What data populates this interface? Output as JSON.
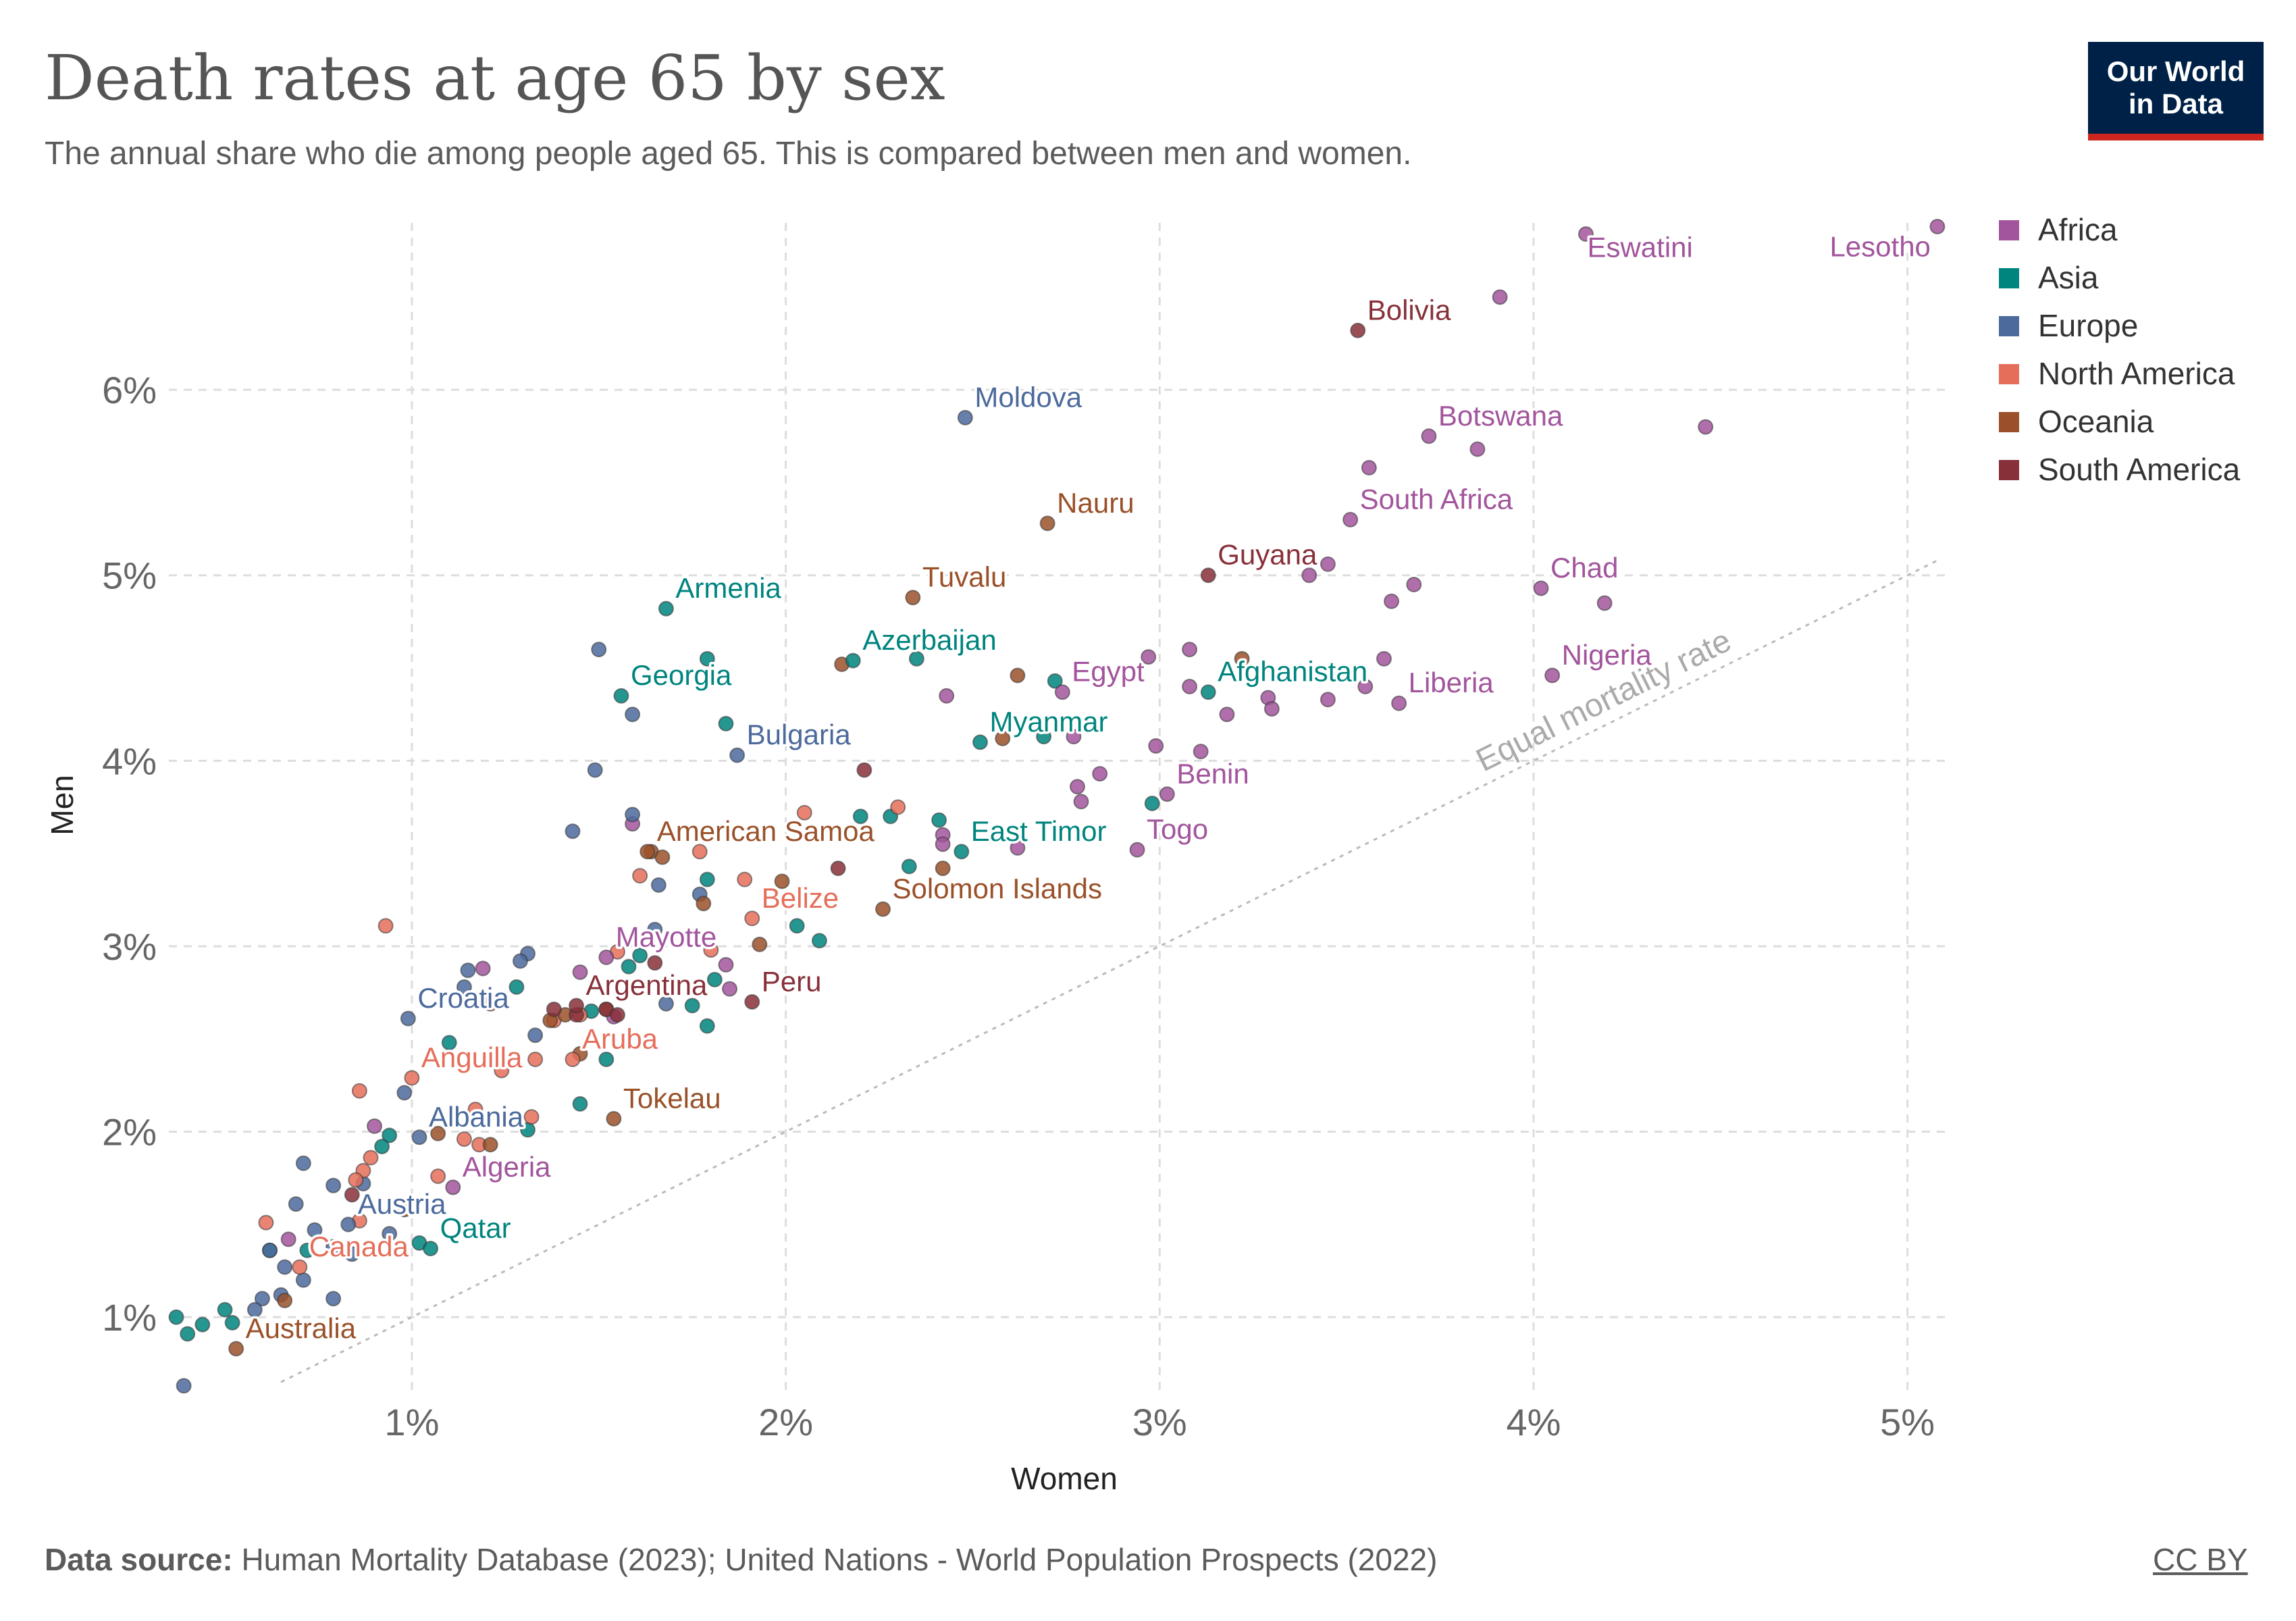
{
  "title": "Death rates at age 65 by sex",
  "subtitle": "The annual share who die among people aged 65. This is compared between men and women.",
  "logo": {
    "line1": "Our World",
    "line2": "in Data"
  },
  "footer": {
    "source_label": "Data source:",
    "source_text": "Human Mortality Database (2023); United Nations - World Population Prospects (2022)",
    "license": "CC BY"
  },
  "colors": {
    "Africa": "#a2559c",
    "Asia": "#00847e",
    "Europe": "#4c6a9c",
    "North America": "#e56e5a",
    "Oceania": "#9a5129",
    "South America": "#883039"
  },
  "chart_data": {
    "type": "scatter",
    "xlabel": "Women",
    "ylabel": "Men",
    "xlim": [
      0.35,
      5.1
    ],
    "ylim": [
      0.6,
      6.9
    ],
    "xticks": [
      1,
      2,
      3,
      4,
      5
    ],
    "yticks": [
      1,
      2,
      3,
      4,
      5,
      6
    ],
    "tick_suffix": "%",
    "grid": true,
    "legend_position": "top-right",
    "legend": [
      "Africa",
      "Asia",
      "Europe",
      "North America",
      "Oceania",
      "South America"
    ],
    "reference_line": {
      "label": "Equal mortality rate",
      "from": [
        0.65,
        0.65
      ],
      "to": [
        5.08,
        5.08
      ]
    },
    "labeled_points": [
      {
        "name": "Lesotho",
        "region": "Africa",
        "x": 5.08,
        "y": 6.88
      },
      {
        "name": "Eswatini",
        "region": "Africa",
        "x": 4.14,
        "y": 6.84
      },
      {
        "name": "Bolivia",
        "region": "South America",
        "x": 3.53,
        "y": 6.32
      },
      {
        "name": "Moldova",
        "region": "Europe",
        "x": 2.48,
        "y": 5.85
      },
      {
        "name": "Botswana",
        "region": "Africa",
        "x": 3.72,
        "y": 5.75
      },
      {
        "name": "South Africa",
        "region": "Africa",
        "x": 3.51,
        "y": 5.3
      },
      {
        "name": "Nauru",
        "region": "Oceania",
        "x": 2.7,
        "y": 5.28
      },
      {
        "name": "Guyana",
        "region": "South America",
        "x": 3.13,
        "y": 5.0
      },
      {
        "name": "Chad",
        "region": "Africa",
        "x": 4.02,
        "y": 4.93
      },
      {
        "name": "Tuvalu",
        "region": "Oceania",
        "x": 2.34,
        "y": 4.88
      },
      {
        "name": "Armenia",
        "region": "Asia",
        "x": 1.68,
        "y": 4.82
      },
      {
        "name": "Azerbaijan",
        "region": "Asia",
        "x": 2.18,
        "y": 4.54
      },
      {
        "name": "Nigeria",
        "region": "Africa",
        "x": 4.05,
        "y": 4.46
      },
      {
        "name": "Egypt",
        "region": "Africa",
        "x": 2.74,
        "y": 4.37
      },
      {
        "name": "Afghanistan",
        "region": "Asia",
        "x": 3.13,
        "y": 4.37
      },
      {
        "name": "Georgia",
        "region": "Asia",
        "x": 1.56,
        "y": 4.35
      },
      {
        "name": "Liberia",
        "region": "Africa",
        "x": 3.64,
        "y": 4.31
      },
      {
        "name": "Myanmar",
        "region": "Asia",
        "x": 2.52,
        "y": 4.1
      },
      {
        "name": "Bulgaria",
        "region": "Europe",
        "x": 1.87,
        "y": 4.03
      },
      {
        "name": "Benin",
        "region": "Africa",
        "x": 3.02,
        "y": 3.82
      },
      {
        "name": "American Samoa",
        "region": "Oceania",
        "x": 1.63,
        "y": 3.51
      },
      {
        "name": "East Timor",
        "region": "Asia",
        "x": 2.47,
        "y": 3.51
      },
      {
        "name": "Togo",
        "region": "Africa",
        "x": 2.94,
        "y": 3.52
      },
      {
        "name": "Solomon Islands",
        "region": "Oceania",
        "x": 2.26,
        "y": 3.2
      },
      {
        "name": "Belize",
        "region": "North America",
        "x": 1.91,
        "y": 3.15
      },
      {
        "name": "Mayotte",
        "region": "Africa",
        "x": 1.52,
        "y": 2.94
      },
      {
        "name": "Peru",
        "region": "South America",
        "x": 1.91,
        "y": 2.7
      },
      {
        "name": "Argentina",
        "region": "South America",
        "x": 1.44,
        "y": 2.68
      },
      {
        "name": "Croatia",
        "region": "Europe",
        "x": 0.99,
        "y": 2.61
      },
      {
        "name": "Aruba",
        "region": "North America",
        "x": 1.43,
        "y": 2.39
      },
      {
        "name": "Anguilla",
        "region": "North America",
        "x": 1.0,
        "y": 2.29
      },
      {
        "name": "Tokelau",
        "region": "Oceania",
        "x": 1.54,
        "y": 2.07
      },
      {
        "name": "Albania",
        "region": "Europe",
        "x": 1.02,
        "y": 1.97
      },
      {
        "name": "Algeria",
        "region": "Africa",
        "x": 1.11,
        "y": 1.7
      },
      {
        "name": "Austria",
        "region": "Europe",
        "x": 0.83,
        "y": 1.5
      },
      {
        "name": "Qatar",
        "region": "Asia",
        "x": 1.05,
        "y": 1.37
      },
      {
        "name": "Canada",
        "region": "North America",
        "x": 0.7,
        "y": 1.27
      },
      {
        "name": "Australia",
        "region": "Oceania",
        "x": 0.53,
        "y": 0.83
      }
    ],
    "points": [
      [
        "Africa",
        4.46,
        5.8
      ],
      [
        "Africa",
        3.91,
        6.5
      ],
      [
        "Africa",
        3.85,
        5.68
      ],
      [
        "Africa",
        3.56,
        5.58
      ],
      [
        "Africa",
        3.45,
        5.06
      ],
      [
        "Africa",
        3.4,
        5.0
      ],
      [
        "Africa",
        3.62,
        4.86
      ],
      [
        "Africa",
        3.68,
        4.95
      ],
      [
        "Africa",
        4.19,
        4.85
      ],
      [
        "Africa",
        3.6,
        4.55
      ],
      [
        "Africa",
        3.55,
        4.4
      ],
      [
        "Africa",
        3.45,
        4.33
      ],
      [
        "Africa",
        3.29,
        4.34
      ],
      [
        "Africa",
        3.3,
        4.28
      ],
      [
        "Africa",
        3.18,
        4.25
      ],
      [
        "Africa",
        3.08,
        4.6
      ],
      [
        "Africa",
        2.97,
        4.56
      ],
      [
        "Africa",
        3.08,
        4.4
      ],
      [
        "Africa",
        2.99,
        4.08
      ],
      [
        "Africa",
        3.11,
        4.05
      ],
      [
        "Africa",
        3.19,
        3.92
      ],
      [
        "Africa",
        2.77,
        4.13
      ],
      [
        "Africa",
        2.84,
        3.93
      ],
      [
        "Africa",
        2.78,
        3.86
      ],
      [
        "Africa",
        2.79,
        3.78
      ],
      [
        "Africa",
        2.62,
        3.53
      ],
      [
        "Africa",
        2.43,
        4.35
      ],
      [
        "Africa",
        2.42,
        3.6
      ],
      [
        "Africa",
        2.42,
        3.55
      ],
      [
        "Africa",
        1.59,
        3.66
      ],
      [
        "Africa",
        1.84,
        2.9
      ],
      [
        "Africa",
        1.85,
        2.77
      ],
      [
        "Africa",
        1.45,
        2.86
      ],
      [
        "Africa",
        1.19,
        2.88
      ],
      [
        "Africa",
        0.9,
        2.03
      ],
      [
        "Africa",
        0.67,
        1.42
      ],
      [
        "Africa",
        1.54,
        2.62
      ],
      [
        "Asia",
        1.79,
        4.55
      ],
      [
        "Asia",
        2.35,
        4.55
      ],
      [
        "Asia",
        1.84,
        4.2
      ],
      [
        "Asia",
        2.72,
        4.43
      ],
      [
        "Asia",
        2.69,
        4.13
      ],
      [
        "Asia",
        2.98,
        3.77
      ],
      [
        "Asia",
        2.2,
        3.7
      ],
      [
        "Asia",
        2.28,
        3.7
      ],
      [
        "Asia",
        2.41,
        3.68
      ],
      [
        "Asia",
        2.33,
        3.43
      ],
      [
        "Asia",
        2.03,
        3.11
      ],
      [
        "Asia",
        2.09,
        3.03
      ],
      [
        "Asia",
        1.79,
        3.36
      ],
      [
        "Asia",
        1.61,
        2.95
      ],
      [
        "Asia",
        1.58,
        2.89
      ],
      [
        "Asia",
        1.75,
        2.68
      ],
      [
        "Asia",
        1.81,
        2.82
      ],
      [
        "Asia",
        1.79,
        2.57
      ],
      [
        "Asia",
        1.28,
        2.78
      ],
      [
        "Asia",
        1.1,
        2.48
      ],
      [
        "Asia",
        1.52,
        2.39
      ],
      [
        "Asia",
        1.48,
        2.65
      ],
      [
        "Asia",
        1.45,
        2.15
      ],
      [
        "Asia",
        1.31,
        2.01
      ],
      [
        "Asia",
        0.94,
        1.98
      ],
      [
        "Asia",
        0.92,
        1.92
      ],
      [
        "Asia",
        1.02,
        1.4
      ],
      [
        "Asia",
        0.62,
        1.36
      ],
      [
        "Asia",
        0.72,
        1.36
      ],
      [
        "Asia",
        0.5,
        1.04
      ],
      [
        "Asia",
        0.4,
        0.91
      ],
      [
        "Asia",
        0.44,
        0.96
      ],
      [
        "Asia",
        0.37,
        1.0
      ],
      [
        "Asia",
        0.52,
        0.97
      ],
      [
        "Europe",
        1.5,
        4.6
      ],
      [
        "Europe",
        1.59,
        4.25
      ],
      [
        "Europe",
        1.49,
        3.95
      ],
      [
        "Europe",
        1.59,
        3.71
      ],
      [
        "Europe",
        1.43,
        3.62
      ],
      [
        "Europe",
        1.66,
        3.33
      ],
      [
        "Europe",
        1.77,
        3.28
      ],
      [
        "Europe",
        1.65,
        3.09
      ],
      [
        "Europe",
        1.31,
        2.96
      ],
      [
        "Europe",
        1.29,
        2.92
      ],
      [
        "Europe",
        1.15,
        2.87
      ],
      [
        "Europe",
        1.14,
        2.78
      ],
      [
        "Europe",
        1.33,
        2.52
      ],
      [
        "Europe",
        1.68,
        2.69
      ],
      [
        "Europe",
        0.98,
        2.21
      ],
      [
        "Europe",
        0.94,
        1.45
      ],
      [
        "Europe",
        0.87,
        1.72
      ],
      [
        "Europe",
        0.79,
        1.71
      ],
      [
        "Europe",
        0.71,
        1.83
      ],
      [
        "Europe",
        0.69,
        1.61
      ],
      [
        "Europe",
        0.74,
        1.47
      ],
      [
        "Europe",
        0.79,
        1.38
      ],
      [
        "Europe",
        0.82,
        1.36
      ],
      [
        "Europe",
        0.84,
        1.34
      ],
      [
        "Europe",
        0.62,
        1.36
      ],
      [
        "Europe",
        0.66,
        1.27
      ],
      [
        "Europe",
        0.71,
        1.2
      ],
      [
        "Europe",
        0.65,
        1.12
      ],
      [
        "Europe",
        0.6,
        1.1
      ],
      [
        "Europe",
        0.58,
        1.04
      ],
      [
        "Europe",
        0.79,
        1.1
      ],
      [
        "Europe",
        0.39,
        0.63
      ],
      [
        "North America",
        0.93,
        3.11
      ],
      [
        "North America",
        2.05,
        3.72
      ],
      [
        "North America",
        2.3,
        3.75
      ],
      [
        "North America",
        1.77,
        3.51
      ],
      [
        "North America",
        1.61,
        3.38
      ],
      [
        "North America",
        1.89,
        3.36
      ],
      [
        "North America",
        1.55,
        2.97
      ],
      [
        "North America",
        1.8,
        2.98
      ],
      [
        "North America",
        1.24,
        2.33
      ],
      [
        "North America",
        1.33,
        2.39
      ],
      [
        "North America",
        1.38,
        2.6
      ],
      [
        "North America",
        1.45,
        2.63
      ],
      [
        "North America",
        1.17,
        2.12
      ],
      [
        "North America",
        1.32,
        2.08
      ],
      [
        "North America",
        1.14,
        1.96
      ],
      [
        "North America",
        1.18,
        1.93
      ],
      [
        "North America",
        1.07,
        1.76
      ],
      [
        "North America",
        0.86,
        2.22
      ],
      [
        "North America",
        0.89,
        1.86
      ],
      [
        "North America",
        0.87,
        1.79
      ],
      [
        "North America",
        0.85,
        1.74
      ],
      [
        "North America",
        0.86,
        1.52
      ],
      [
        "North America",
        0.61,
        1.51
      ],
      [
        "Oceania",
        2.15,
        4.52
      ],
      [
        "Oceania",
        2.62,
        4.46
      ],
      [
        "Oceania",
        2.58,
        4.12
      ],
      [
        "Oceania",
        3.22,
        4.55
      ],
      [
        "Oceania",
        1.64,
        3.51
      ],
      [
        "Oceania",
        1.67,
        3.48
      ],
      [
        "Oceania",
        1.99,
        3.35
      ],
      [
        "Oceania",
        1.78,
        3.23
      ],
      [
        "Oceania",
        2.42,
        3.42
      ],
      [
        "Oceania",
        1.93,
        3.01
      ],
      [
        "Oceania",
        1.52,
        2.66
      ],
      [
        "Oceania",
        1.41,
        2.63
      ],
      [
        "Oceania",
        1.37,
        2.6
      ],
      [
        "Oceania",
        1.45,
        2.42
      ],
      [
        "Oceania",
        1.21,
        2.69
      ],
      [
        "Oceania",
        1.21,
        1.93
      ],
      [
        "Oceania",
        1.07,
        1.99
      ],
      [
        "Oceania",
        0.98,
        1.58
      ],
      [
        "Oceania",
        0.66,
        1.09
      ],
      [
        "South America",
        2.21,
        3.95
      ],
      [
        "South America",
        2.14,
        3.42
      ],
      [
        "South America",
        1.65,
        2.91
      ],
      [
        "South America",
        1.52,
        2.66
      ],
      [
        "South America",
        1.38,
        2.66
      ],
      [
        "South America",
        1.44,
        2.63
      ],
      [
        "South America",
        1.55,
        2.63
      ],
      [
        "South America",
        0.84,
        1.66
      ]
    ]
  }
}
